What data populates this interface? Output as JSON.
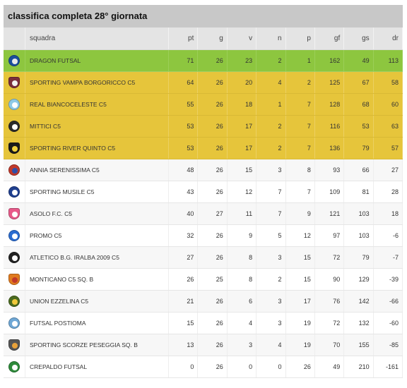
{
  "title": "classifica completa 28° giornata",
  "columns": {
    "team": "squadra",
    "pt": "pt",
    "g": "g",
    "v": "v",
    "n": "n",
    "p": "p",
    "gf": "gf",
    "gs": "gs",
    "dr": "dr"
  },
  "colors": {
    "zone_green": "#8dc63f",
    "zone_yellow": "#e6c53b",
    "header_bg": "#e4e4e4",
    "title_bg": "#c8c8c8"
  },
  "rows": [
    {
      "team": "DRAGON FUTSAL",
      "pt": "71",
      "g": "26",
      "v": "23",
      "n": "2",
      "p": "1",
      "gf": "162",
      "gs": "49",
      "dr": "113",
      "zone": "green",
      "logo": "dragon-crest-icon",
      "c1": "#1b4f9c",
      "c2": "#e9e9e9"
    },
    {
      "team": "SPORTING VAMPA BORGORICCO C5",
      "pt": "64",
      "g": "26",
      "v": "20",
      "n": "4",
      "p": "2",
      "gf": "125",
      "gs": "67",
      "dr": "58",
      "zone": "yellow",
      "logo": "vampa-crest-icon",
      "c1": "#7a2d3c",
      "c2": "#f2f2f2"
    },
    {
      "team": "REAL BIANCOCELESTE C5",
      "pt": "55",
      "g": "26",
      "v": "18",
      "n": "1",
      "p": "7",
      "gf": "128",
      "gs": "68",
      "dr": "60",
      "zone": "yellow",
      "logo": "biancoceleste-crest-icon",
      "c1": "#8ecae6",
      "c2": "#ffffff"
    },
    {
      "team": "MITTICI C5",
      "pt": "53",
      "g": "26",
      "v": "17",
      "n": "2",
      "p": "7",
      "gf": "116",
      "gs": "53",
      "dr": "63",
      "zone": "yellow",
      "logo": "mittici-crest-icon",
      "c1": "#2a2a2a",
      "c2": "#ffffff"
    },
    {
      "team": "SPORTING RIVER QUINTO C5",
      "pt": "53",
      "g": "26",
      "v": "17",
      "n": "2",
      "p": "7",
      "gf": "136",
      "gs": "79",
      "dr": "57",
      "zone": "yellow",
      "logo": "river-quinto-crest-icon",
      "c1": "#1a1a1a",
      "c2": "#f0d23c"
    },
    {
      "team": "ANNIA SERENISSIMA C5",
      "pt": "48",
      "g": "26",
      "v": "15",
      "n": "3",
      "p": "8",
      "gf": "93",
      "gs": "66",
      "dr": "27",
      "zone": "none",
      "logo": "annia-crest-icon",
      "c1": "#c0392b",
      "c2": "#2e4fa8"
    },
    {
      "team": "SPORTING MUSILE C5",
      "pt": "43",
      "g": "26",
      "v": "12",
      "n": "7",
      "p": "7",
      "gf": "109",
      "gs": "81",
      "dr": "28",
      "zone": "none",
      "logo": "musile-crest-icon",
      "c1": "#1f3f8f",
      "c2": "#ffffff"
    },
    {
      "team": "ASOLO F.C. C5",
      "pt": "40",
      "g": "27",
      "v": "11",
      "n": "7",
      "p": "9",
      "gf": "121",
      "gs": "103",
      "dr": "18",
      "zone": "none",
      "logo": "asolo-crest-icon",
      "c1": "#e85a8a",
      "c2": "#ffffff"
    },
    {
      "team": "PROMO C5",
      "pt": "32",
      "g": "26",
      "v": "9",
      "n": "5",
      "p": "12",
      "gf": "97",
      "gs": "103",
      "dr": "-6",
      "zone": "none",
      "logo": "promo-crest-icon",
      "c1": "#2b6cd1",
      "c2": "#ffffff"
    },
    {
      "team": "ATLETICO B.G. IRALBA 2009 C5",
      "pt": "27",
      "g": "26",
      "v": "8",
      "n": "3",
      "p": "15",
      "gf": "72",
      "gs": "79",
      "dr": "-7",
      "zone": "none",
      "logo": "iralba-crest-icon",
      "c1": "#222222",
      "c2": "#ffffff"
    },
    {
      "team": "MONTICANO C5 Sq. B",
      "pt": "26",
      "g": "25",
      "v": "8",
      "n": "2",
      "p": "15",
      "gf": "90",
      "gs": "129",
      "dr": "-39",
      "zone": "none",
      "logo": "monticano-crest-icon",
      "c1": "#e07b1f",
      "c2": "#c0392b"
    },
    {
      "team": "UNION EZZELINA C5",
      "pt": "21",
      "g": "26",
      "v": "6",
      "n": "3",
      "p": "17",
      "gf": "76",
      "gs": "142",
      "dr": "-66",
      "zone": "none",
      "logo": "ezzelina-crest-icon",
      "c1": "#4b6b1f",
      "c2": "#f0c93c"
    },
    {
      "team": "FUTSAL POSTIOMA",
      "pt": "15",
      "g": "26",
      "v": "4",
      "n": "3",
      "p": "19",
      "gf": "72",
      "gs": "132",
      "dr": "-60",
      "zone": "none",
      "logo": "postioma-crest-icon",
      "c1": "#6fa8d6",
      "c2": "#ffffff"
    },
    {
      "team": "SPORTING SCORZE PESEGGIA Sq. B",
      "pt": "13",
      "g": "26",
      "v": "3",
      "n": "4",
      "p": "19",
      "gf": "70",
      "gs": "155",
      "dr": "-85",
      "zone": "none",
      "logo": "scorze-crest-icon",
      "c1": "#555555",
      "c2": "#e8a23a"
    },
    {
      "team": "CREPALDO FUTSAL",
      "pt": "0",
      "g": "26",
      "v": "0",
      "n": "0",
      "p": "26",
      "gf": "49",
      "gs": "210",
      "dr": "-161",
      "zone": "none",
      "logo": "crepaldo-crest-icon",
      "c1": "#2e8b3a",
      "c2": "#ffffff"
    }
  ]
}
